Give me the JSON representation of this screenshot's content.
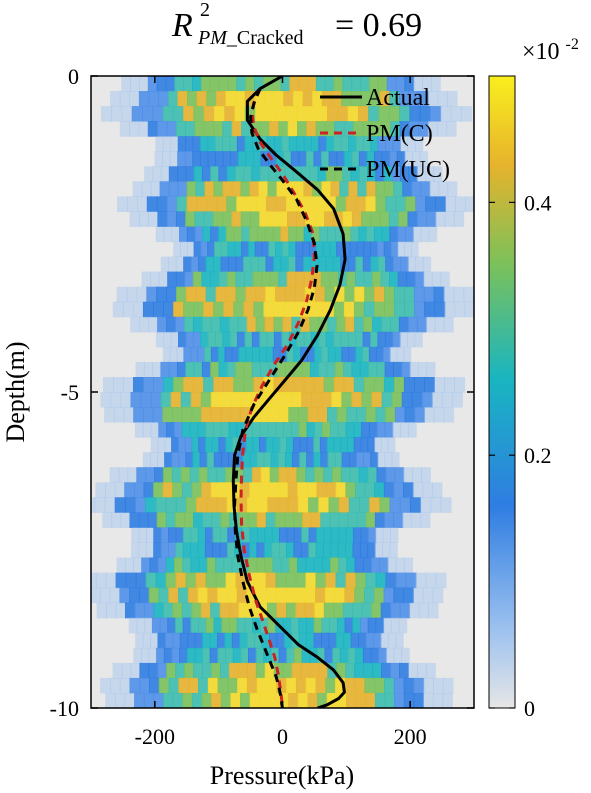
{
  "chart_data": {
    "type": "line",
    "title": {
      "base": "R",
      "superscript": "2",
      "subscript_italic": "PM",
      "subscript_text": "_Cracked",
      "suffix": "= 0.69"
    },
    "xlabel": "Pressure(kPa)",
    "ylabel": "Depth(m)",
    "xlim": [
      -300,
      300
    ],
    "ylim": [
      -10,
      0
    ],
    "xticks": [
      -200,
      0,
      200
    ],
    "xtick_labels": [
      "-200",
      "0",
      "200"
    ],
    "yticks": [
      0,
      -5,
      -10
    ],
    "ytick_labels": [
      "0",
      "-5",
      "-10"
    ],
    "legend_position": "top-right",
    "series": [
      {
        "name": "Actual",
        "style": "solid",
        "color": "#000000",
        "x": [
          0,
          -35,
          -55,
          -55,
          -35,
          -10,
          20,
          55,
          80,
          95,
          98,
          90,
          75,
          55,
          30,
          5,
          -20,
          -45,
          -65,
          -75,
          -77,
          -76,
          -72,
          -65,
          -55,
          -35,
          -5,
          25,
          55,
          80,
          95,
          97,
          88,
          70,
          55
        ],
        "y": [
          0,
          -0.2,
          -0.4,
          -0.7,
          -1.0,
          -1.25,
          -1.5,
          -1.8,
          -2.1,
          -2.5,
          -2.9,
          -3.3,
          -3.7,
          -4.1,
          -4.5,
          -4.8,
          -5.1,
          -5.4,
          -5.7,
          -6.0,
          -6.4,
          -6.8,
          -7.2,
          -7.6,
          -8.0,
          -8.4,
          -8.7,
          -9.0,
          -9.2,
          -9.4,
          -9.6,
          -9.75,
          -9.85,
          -9.95,
          -10
        ]
      },
      {
        "name": "PM(C)",
        "style": "dashed",
        "color": "#cc2222",
        "x": [
          -35,
          -42,
          -48,
          -45,
          -35,
          -18,
          0,
          18,
          35,
          48,
          50,
          46,
          38,
          25,
          8,
          -12,
          -32,
          -48,
          -58,
          -62,
          -64,
          -65,
          -64,
          -60,
          -52,
          -42,
          -30,
          -20,
          -12,
          -7,
          -4,
          -2,
          -1,
          0
        ],
        "y": [
          -0.2,
          -0.35,
          -0.55,
          -0.8,
          -1.05,
          -1.3,
          -1.55,
          -1.85,
          -2.15,
          -2.5,
          -2.85,
          -3.2,
          -3.55,
          -3.9,
          -4.25,
          -4.55,
          -4.9,
          -5.25,
          -5.6,
          -5.95,
          -6.3,
          -6.7,
          -7.1,
          -7.5,
          -7.9,
          -8.3,
          -8.65,
          -8.95,
          -9.2,
          -9.45,
          -9.65,
          -9.8,
          -9.9,
          -10
        ]
      },
      {
        "name": "PM(UC)",
        "style": "dashed",
        "color": "#000000",
        "x": [
          -35,
          -44,
          -50,
          -48,
          -38,
          -20,
          0,
          22,
          38,
          50,
          54,
          50,
          40,
          25,
          5,
          -20,
          -45,
          -62,
          -70,
          -73,
          -75,
          -74,
          -70,
          -62,
          -52,
          -40,
          -28,
          -18,
          -10,
          -5,
          -2,
          -1,
          0
        ],
        "y": [
          -0.2,
          -0.4,
          -0.65,
          -0.9,
          -1.15,
          -1.4,
          -1.65,
          -1.95,
          -2.3,
          -2.65,
          -3.0,
          -3.35,
          -3.7,
          -4.05,
          -4.4,
          -4.8,
          -5.2,
          -5.6,
          -6.0,
          -6.4,
          -6.8,
          -7.2,
          -7.6,
          -8.0,
          -8.4,
          -8.75,
          -9.05,
          -9.3,
          -9.5,
          -9.7,
          -9.85,
          -9.95,
          -10
        ]
      }
    ],
    "colorbar": {
      "ticks": [
        0,
        0.2,
        0.4
      ],
      "tick_labels": [
        "0",
        "0.2",
        "0.4"
      ],
      "range": [
        0,
        0.5
      ],
      "multiplier_base": "×10",
      "multiplier_exp": "-2",
      "colors": [
        "#e6e6e6",
        "#3a7fe0",
        "#17b4c2",
        "#5cc26e",
        "#e8b42a",
        "#f9ef1d"
      ]
    }
  }
}
